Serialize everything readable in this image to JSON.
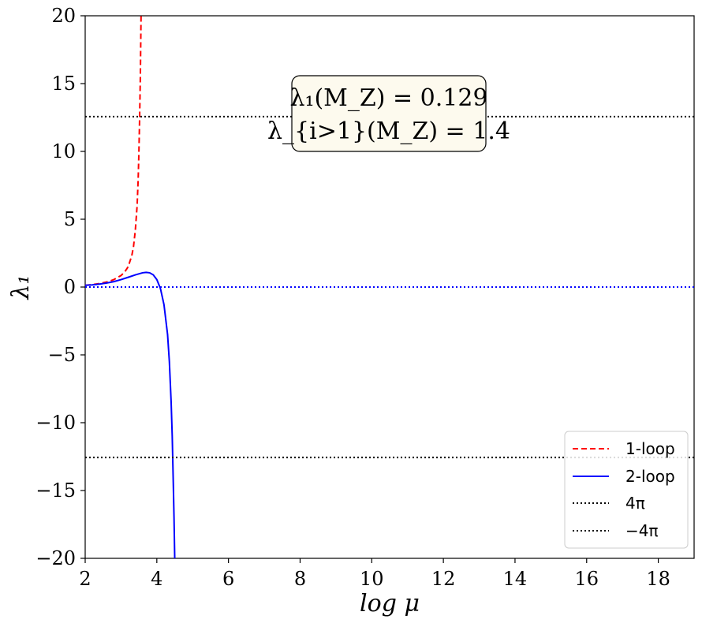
{
  "chart_data": {
    "type": "line",
    "xlabel": "log μ",
    "ylabel": "λ₁",
    "xlim": [
      2,
      19
    ],
    "ylim": [
      -20,
      20
    ],
    "xticks": [
      "2",
      "4",
      "6",
      "8",
      "10",
      "12",
      "14",
      "16",
      "18"
    ],
    "yticks": [
      "−20",
      "−15",
      "−10",
      "−5",
      "0",
      "5",
      "10",
      "15",
      "20"
    ],
    "grid": false,
    "legend_position": "bottom-right",
    "annotation": {
      "line1": "λ₁(M_Z) = 0.129",
      "line2": "λ_{i>1}(M_Z) = 1.4",
      "background": "#fdfaee"
    },
    "series": [
      {
        "name": "1-loop",
        "color": "#ff0000",
        "style": "dashed",
        "x": [
          2.0,
          2.2,
          2.4,
          2.6,
          2.8,
          3.0,
          3.1,
          3.2,
          3.3,
          3.35,
          3.4,
          3.45,
          3.48,
          3.5,
          3.52,
          3.54,
          3.56
        ],
        "y": [
          0.13,
          0.18,
          0.26,
          0.37,
          0.55,
          0.85,
          1.1,
          1.5,
          2.3,
          3.0,
          4.2,
          6.0,
          8.0,
          10.0,
          12.5,
          15.5,
          20
        ]
      },
      {
        "name": "2-loop",
        "color": "#0000ff",
        "style": "solid",
        "x": [
          2.0,
          2.2,
          2.4,
          2.6,
          2.8,
          3.0,
          3.2,
          3.4,
          3.6,
          3.7,
          3.8,
          3.9,
          4.0,
          4.1,
          4.2,
          4.3,
          4.35,
          4.4,
          4.43,
          4.46,
          4.48,
          4.5
        ],
        "y": [
          0.13,
          0.16,
          0.22,
          0.3,
          0.4,
          0.55,
          0.72,
          0.9,
          1.05,
          1.08,
          1.05,
          0.9,
          0.55,
          -0.1,
          -1.3,
          -3.5,
          -5.5,
          -8.5,
          -11.0,
          -14.5,
          -17.0,
          -20
        ]
      },
      {
        "name": "4π",
        "color": "#000000",
        "style": "dotted",
        "x": [
          2,
          19
        ],
        "y": [
          12.566,
          12.566
        ]
      },
      {
        "name": "−4π",
        "color": "#000000",
        "style": "dotted",
        "x": [
          2,
          19
        ],
        "y": [
          -12.566,
          -12.566
        ]
      }
    ],
    "reference_line": {
      "color": "#0000ff",
      "style": "dotted",
      "y": 0
    }
  }
}
